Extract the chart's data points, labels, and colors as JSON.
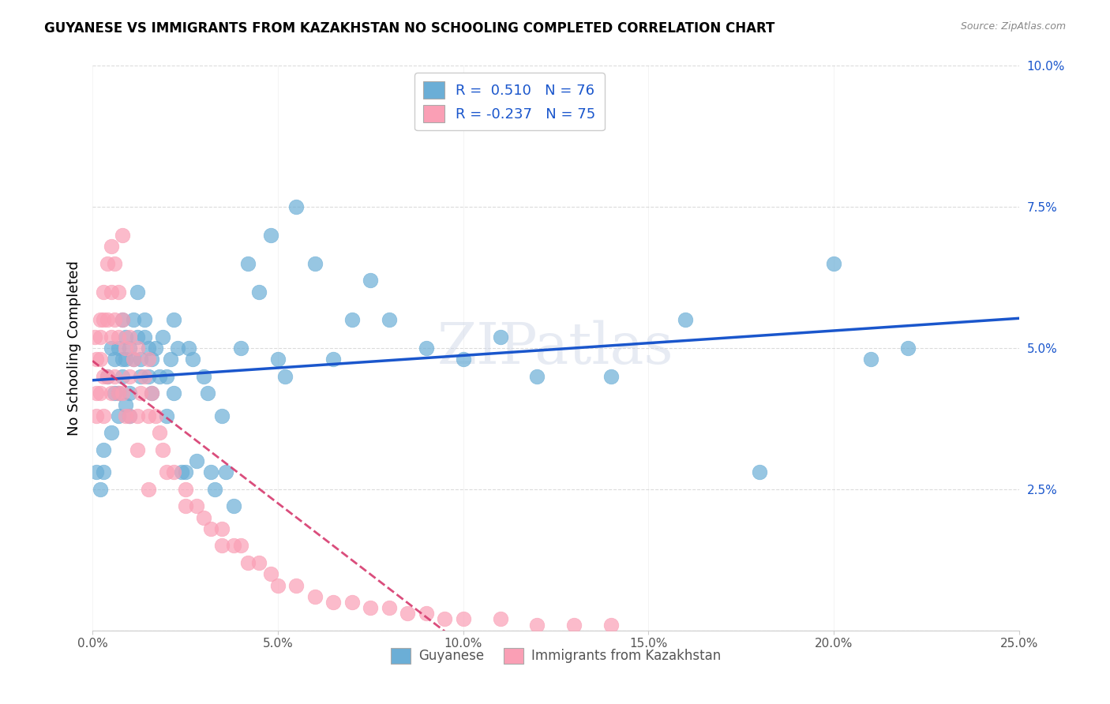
{
  "title": "GUYANESE VS IMMIGRANTS FROM KAZAKHSTAN NO SCHOOLING COMPLETED CORRELATION CHART",
  "source": "Source: ZipAtlas.com",
  "ylabel": "No Schooling Completed",
  "xlabel": "",
  "xlim": [
    0,
    0.25
  ],
  "ylim": [
    0,
    0.1
  ],
  "xticks": [
    0.0,
    0.05,
    0.1,
    0.15,
    0.2,
    0.25
  ],
  "yticks": [
    0.0,
    0.025,
    0.05,
    0.075,
    0.1
  ],
  "xtick_labels": [
    "0.0%",
    "5.0%",
    "10.0%",
    "15.0%",
    "20.0%",
    "25.0%"
  ],
  "ytick_labels": [
    "",
    "2.5%",
    "5.0%",
    "7.5%",
    "10.0%"
  ],
  "blue_color": "#6baed6",
  "pink_color": "#fa9fb5",
  "blue_line_color": "#1a56cc",
  "pink_line_color": "#d63a6e",
  "blue_R": 0.51,
  "blue_N": 76,
  "pink_R": -0.237,
  "pink_N": 75,
  "legend_label_blue": "Guyanese",
  "legend_label_pink": "Immigrants from Kazakhstan",
  "watermark": "ZIPatlas",
  "blue_x": [
    0.001,
    0.002,
    0.003,
    0.003,
    0.004,
    0.005,
    0.005,
    0.006,
    0.006,
    0.007,
    0.007,
    0.007,
    0.008,
    0.008,
    0.008,
    0.009,
    0.009,
    0.009,
    0.01,
    0.01,
    0.01,
    0.011,
    0.011,
    0.012,
    0.012,
    0.013,
    0.013,
    0.014,
    0.014,
    0.015,
    0.015,
    0.016,
    0.016,
    0.017,
    0.018,
    0.019,
    0.02,
    0.02,
    0.021,
    0.022,
    0.022,
    0.023,
    0.024,
    0.025,
    0.026,
    0.027,
    0.028,
    0.03,
    0.031,
    0.032,
    0.033,
    0.035,
    0.036,
    0.038,
    0.04,
    0.042,
    0.045,
    0.048,
    0.05,
    0.052,
    0.055,
    0.06,
    0.065,
    0.07,
    0.075,
    0.08,
    0.09,
    0.1,
    0.11,
    0.12,
    0.14,
    0.16,
    0.18,
    0.2,
    0.21,
    0.22
  ],
  "blue_y": [
    0.028,
    0.025,
    0.032,
    0.028,
    0.045,
    0.035,
    0.05,
    0.048,
    0.042,
    0.038,
    0.05,
    0.042,
    0.048,
    0.055,
    0.045,
    0.052,
    0.048,
    0.04,
    0.05,
    0.042,
    0.038,
    0.055,
    0.048,
    0.052,
    0.06,
    0.048,
    0.045,
    0.052,
    0.055,
    0.05,
    0.045,
    0.048,
    0.042,
    0.05,
    0.045,
    0.052,
    0.045,
    0.038,
    0.048,
    0.055,
    0.042,
    0.05,
    0.028,
    0.028,
    0.05,
    0.048,
    0.03,
    0.045,
    0.042,
    0.028,
    0.025,
    0.038,
    0.028,
    0.022,
    0.05,
    0.065,
    0.06,
    0.07,
    0.048,
    0.045,
    0.075,
    0.065,
    0.048,
    0.055,
    0.062,
    0.055,
    0.05,
    0.048,
    0.052,
    0.045,
    0.045,
    0.055,
    0.028,
    0.065,
    0.048,
    0.05
  ],
  "pink_x": [
    0.0005,
    0.001,
    0.001,
    0.001,
    0.002,
    0.002,
    0.002,
    0.002,
    0.003,
    0.003,
    0.003,
    0.003,
    0.004,
    0.004,
    0.004,
    0.005,
    0.005,
    0.005,
    0.005,
    0.006,
    0.006,
    0.006,
    0.007,
    0.007,
    0.007,
    0.008,
    0.008,
    0.009,
    0.009,
    0.01,
    0.01,
    0.01,
    0.011,
    0.012,
    0.012,
    0.013,
    0.014,
    0.015,
    0.015,
    0.016,
    0.017,
    0.018,
    0.019,
    0.02,
    0.022,
    0.025,
    0.028,
    0.03,
    0.032,
    0.035,
    0.038,
    0.04,
    0.042,
    0.045,
    0.048,
    0.05,
    0.055,
    0.06,
    0.065,
    0.07,
    0.075,
    0.08,
    0.085,
    0.09,
    0.095,
    0.1,
    0.11,
    0.12,
    0.13,
    0.14,
    0.015,
    0.025,
    0.035,
    0.012,
    0.008
  ],
  "pink_y": [
    0.052,
    0.048,
    0.042,
    0.038,
    0.055,
    0.052,
    0.048,
    0.042,
    0.06,
    0.055,
    0.045,
    0.038,
    0.065,
    0.055,
    0.045,
    0.068,
    0.06,
    0.052,
    0.042,
    0.065,
    0.055,
    0.045,
    0.06,
    0.052,
    0.042,
    0.055,
    0.042,
    0.05,
    0.038,
    0.052,
    0.045,
    0.038,
    0.048,
    0.05,
    0.038,
    0.042,
    0.045,
    0.048,
    0.038,
    0.042,
    0.038,
    0.035,
    0.032,
    0.028,
    0.028,
    0.025,
    0.022,
    0.02,
    0.018,
    0.018,
    0.015,
    0.015,
    0.012,
    0.012,
    0.01,
    0.008,
    0.008,
    0.006,
    0.005,
    0.005,
    0.004,
    0.004,
    0.003,
    0.003,
    0.002,
    0.002,
    0.002,
    0.001,
    0.001,
    0.001,
    0.025,
    0.022,
    0.015,
    0.032,
    0.07
  ]
}
